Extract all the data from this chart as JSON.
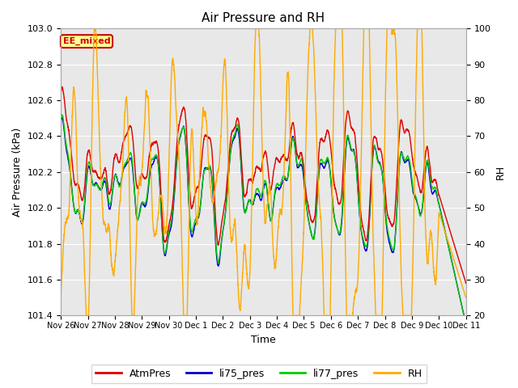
{
  "title": "Air Pressure and RH",
  "xlabel": "Time",
  "ylabel_left": "Air Pressure (kPa)",
  "ylabel_right": "RH",
  "ylim_left": [
    101.4,
    103.0
  ],
  "ylim_right": [
    20,
    100
  ],
  "yticks_left": [
    101.4,
    101.6,
    101.8,
    102.0,
    102.2,
    102.4,
    102.6,
    102.8,
    103.0
  ],
  "yticks_right": [
    20,
    30,
    40,
    50,
    60,
    70,
    80,
    90,
    100
  ],
  "legend_labels": [
    "AtmPres",
    "li75_pres",
    "li77_pres",
    "RH"
  ],
  "legend_colors": [
    "#dd0000",
    "#0000cc",
    "#00cc00",
    "#ffaa00"
  ],
  "annotation_text": "EE_mixed",
  "annotation_color": "#cc0000",
  "annotation_bg": "#ffff99",
  "plot_bg": "#e8e8e8",
  "line_width": 1.0,
  "n_points": 5000,
  "x_tick_labels": [
    "Nov 26",
    "Nov 27",
    "Nov 28",
    "Nov 29",
    "Nov 30",
    "Dec 1",
    "Dec 2",
    "Dec 3",
    "Dec 4",
    "Dec 5",
    "Dec 6",
    "Dec 7",
    "Dec 8",
    "Dec 9",
    "Dec 10",
    "Dec 11"
  ]
}
